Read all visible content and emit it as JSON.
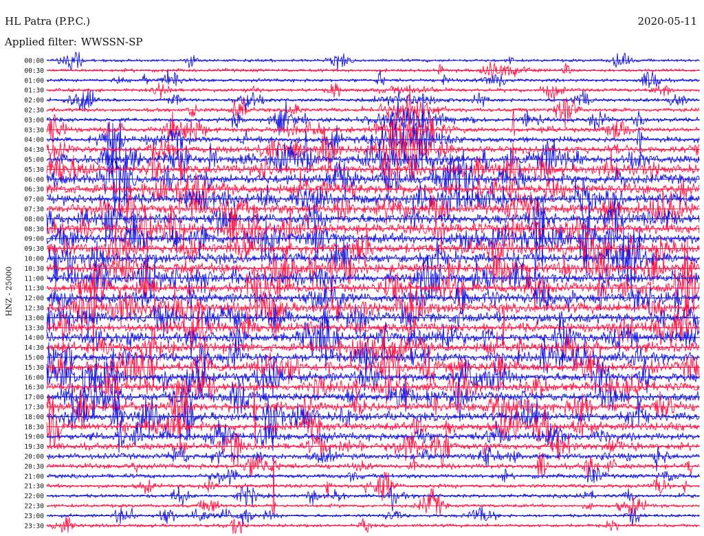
{
  "header": {
    "station": "HL Patra (P.P.C.)",
    "date": "2020-05-11",
    "filter_label": "Applied filter:",
    "filter_value": "WWSSN-SP"
  },
  "side_label": "HNZ - 25000",
  "colors": {
    "trace_a": "#1010e0",
    "trace_b": "#ff1040",
    "text": "#111111",
    "background": "#ffffff"
  },
  "chart_data": {
    "type": "line",
    "title": "",
    "xlabel": "",
    "ylabel": "HNZ - 25000",
    "row_labels": [
      "00:00",
      "00:30",
      "01:00",
      "01:30",
      "02:00",
      "02:30",
      "03:00",
      "03:30",
      "04:00",
      "04:30",
      "05:00",
      "05:30",
      "06:00",
      "06:30",
      "07:00",
      "07:30",
      "08:00",
      "08:30",
      "09:00",
      "09:30",
      "10:00",
      "10:30",
      "11:00",
      "11:30",
      "12:00",
      "12:30",
      "13:00",
      "13:30",
      "14:00",
      "14:30",
      "15:00",
      "15:30",
      "16:00",
      "16:30",
      "17:00",
      "17:30",
      "18:00",
      "18:30",
      "19:00",
      "19:30",
      "20:00",
      "20:30",
      "21:00",
      "21:30",
      "22:00",
      "22:30",
      "23:00",
      "23:30"
    ],
    "row_colors": [
      "trace_a",
      "trace_b"
    ],
    "relative_amplitude": [
      0.12,
      0.14,
      0.15,
      0.16,
      0.17,
      0.2,
      0.25,
      0.3,
      0.4,
      0.5,
      0.62,
      0.72,
      0.78,
      0.82,
      0.85,
      0.86,
      0.86,
      0.85,
      0.84,
      0.83,
      0.82,
      0.82,
      0.81,
      0.8,
      0.8,
      0.8,
      0.79,
      0.78,
      0.78,
      0.77,
      0.76,
      0.75,
      0.74,
      0.73,
      0.71,
      0.69,
      0.66,
      0.62,
      0.55,
      0.48,
      0.4,
      0.33,
      0.26,
      0.22,
      0.18,
      0.16,
      0.15,
      0.14
    ],
    "grid": false,
    "legend": "none"
  }
}
